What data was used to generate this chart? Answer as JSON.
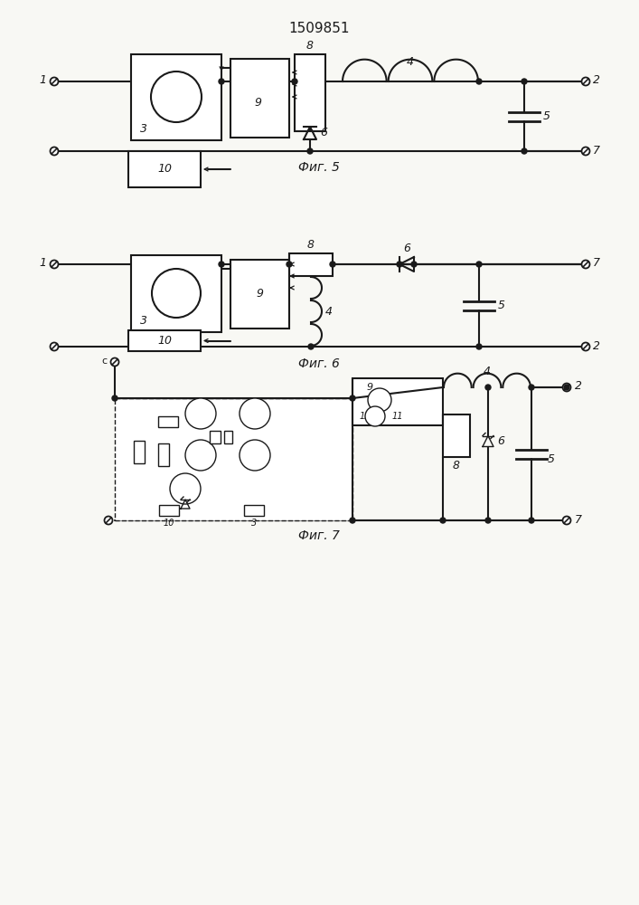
{
  "title": "1509851",
  "bg_color": "#f8f8f4",
  "lc": "#1a1a1a",
  "lw": 1.5,
  "lw_thin": 1.0,
  "fig5_label": "Фиг. 5",
  "fig6_label": "Фиг. 6",
  "fig7_label": "Фиг. 7"
}
